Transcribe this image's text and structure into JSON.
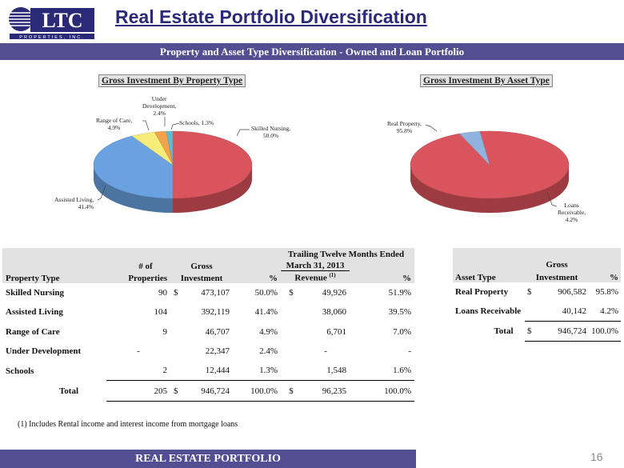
{
  "logo": {
    "letters": "LTC",
    "tagline": "PROPERTIES, INC."
  },
  "title": "Real Estate Portfolio Diversification",
  "subtitle": "Property and Asset Type Diversification - Owned and Loan Portfolio",
  "chart_data": [
    {
      "type": "pie",
      "title": "Gross Investment By Property Type",
      "categories": [
        "Skilled Nursing",
        "Assisted Living",
        "Range of Care",
        "Under Development",
        "Schools"
      ],
      "values": [
        50.0,
        41.4,
        4.9,
        2.4,
        1.3
      ],
      "labels": [
        "Skilled Nursing,\n50.0%",
        "Assisted Living,\n41.4%",
        "Range of Care,\n4.9%",
        "Under\nDevelopment,\n2.4%",
        "Schools, 1.3%"
      ],
      "colors": [
        "#d9545c",
        "#6aa1e0",
        "#f6ec7a",
        "#f1a24a",
        "#5fbad1"
      ]
    },
    {
      "type": "pie",
      "title": "Gross Investment By Asset Type",
      "categories": [
        "Real Property",
        "Loans Receivable"
      ],
      "values": [
        95.8,
        4.2
      ],
      "labels": [
        "Real Property,\n95.8%",
        "Loans\nReceivable,\n4.2%"
      ],
      "colors": [
        "#d9545c",
        "#8fb2df"
      ]
    }
  ],
  "table": {
    "period_line1": "Trailing Twelve Months Ended",
    "period_line2": "March 31, 2013",
    "hdr_num_of": "# of",
    "hdr_gross": "Gross",
    "hdr_property_type": "Property Type",
    "hdr_properties": "Properties",
    "hdr_investment": "Investment",
    "hdr_pct": "%",
    "hdr_revenue": "Revenue",
    "hdr_revenue_note": "(1)",
    "hdr_pct2": "%",
    "rows": [
      {
        "type": "Skilled Nursing",
        "props": "90",
        "dollar": "$",
        "inv": "473,107",
        "pct": "50.0%",
        "rdollar": "$",
        "rev": "49,926",
        "rpct": "51.9%"
      },
      {
        "type": "Assisted Living",
        "props": "104",
        "dollar": "",
        "inv": "392,119",
        "pct": "41.4%",
        "rdollar": "",
        "rev": "38,060",
        "rpct": "39.5%"
      },
      {
        "type": "Range of Care",
        "props": "9",
        "dollar": "",
        "inv": "46,707",
        "pct": "4.9%",
        "rdollar": "",
        "rev": "6,701",
        "rpct": "7.0%"
      },
      {
        "type": "Under Development",
        "props": "-",
        "dollar": "",
        "inv": "22,347",
        "pct": "2.4%",
        "rdollar": "",
        "rev": "-",
        "rpct": "-"
      },
      {
        "type": "Schools",
        "props": "2",
        "dollar": "",
        "inv": "12,444",
        "pct": "1.3%",
        "rdollar": "",
        "rev": "1,548",
        "rpct": "1.6%"
      }
    ],
    "total": {
      "label": "Total",
      "props": "205",
      "dollar": "$",
      "inv": "946,724",
      "pct": "100.0%",
      "rdollar": "$",
      "rev": "96,235",
      "rpct": "100.0%"
    }
  },
  "table2": {
    "hdr_gross": "Gross",
    "hdr_asset_type": "Asset Type",
    "hdr_investment": "Investment",
    "hdr_pct": "%",
    "rows": [
      {
        "type": "Real Property",
        "dollar": "$",
        "inv": "906,582",
        "pct": "95.8%"
      },
      {
        "type": "Loans Receivable",
        "dollar": "",
        "inv": "40,142",
        "pct": "4.2%"
      }
    ],
    "total": {
      "label": "Total",
      "dollar": "$",
      "inv": "946,724",
      "pct": "100.0%"
    }
  },
  "footnote": "(1)   Includes Rental income and interest income from mortgage loans",
  "footer": {
    "section": "REAL ESTATE PORTFOLIO",
    "page": "16"
  }
}
